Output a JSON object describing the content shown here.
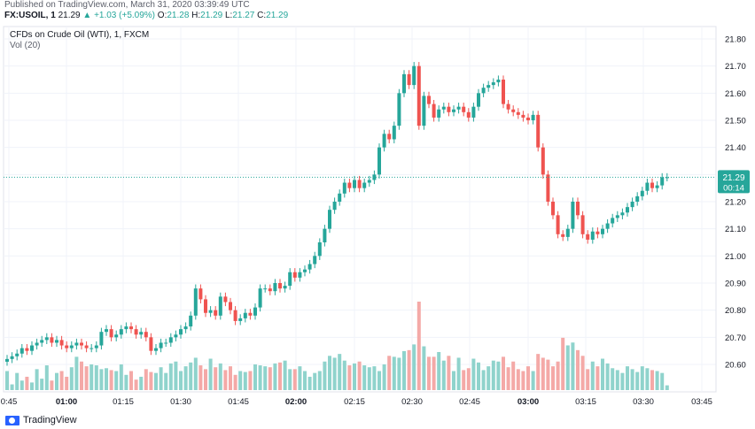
{
  "header": {
    "published": "Published on TradingView.com, March 31, 2020 03:39:49 UTC",
    "symbol": "FX:USOIL, 1",
    "last": "21.29",
    "change": "▲ +1.03 (+5.09%)",
    "o_label": "O:",
    "o_val": "21.28",
    "h_label": "H:",
    "h_val": "21.29",
    "l_label": "L:",
    "l_val": "21.27",
    "c_label": "C:",
    "c_val": "21.29"
  },
  "legend": {
    "title": "CFDs on Crude Oil (WTI), 1, FXCM",
    "vol": "Vol (20)"
  },
  "price_tag": {
    "price": "21.29",
    "countdown": "00:14"
  },
  "footer": {
    "brand": "TradingView"
  },
  "colors": {
    "up": "#26a69a",
    "down": "#ef5350",
    "vol_up": "#8fd3cc",
    "vol_down": "#f4a9a7",
    "grid": "#f0f3fa",
    "last_line": "#26a69a"
  },
  "chart_data": {
    "type": "candlestick",
    "title": "CFDs on Crude Oil (WTI), 1, FXCM",
    "x_tick_labels": [
      "0:45",
      "01:00",
      "01:15",
      "01:30",
      "01:45",
      "02:00",
      "02:15",
      "02:30",
      "02:45",
      "03:00",
      "03:15",
      "03:30",
      "03:45"
    ],
    "y_tick_labels": [
      "20.60",
      "20.70",
      "20.80",
      "20.90",
      "21.00",
      "21.10",
      "21.20",
      "21.30",
      "21.40",
      "21.50",
      "21.60",
      "21.70",
      "21.80"
    ],
    "ylim": [
      20.52,
      21.84
    ],
    "last_price": 21.29,
    "close": [
      20.62,
      20.63,
      20.64,
      20.66,
      20.65,
      20.67,
      20.68,
      20.69,
      20.7,
      20.68,
      20.69,
      20.67,
      20.66,
      20.67,
      20.68,
      20.67,
      20.66,
      20.66,
      20.67,
      20.72,
      20.73,
      20.7,
      20.71,
      20.73,
      20.74,
      20.73,
      20.71,
      20.72,
      20.7,
      20.65,
      20.66,
      20.68,
      20.68,
      20.7,
      20.71,
      20.73,
      20.74,
      20.78,
      20.88,
      20.84,
      20.79,
      20.8,
      20.78,
      20.85,
      20.83,
      20.8,
      20.76,
      20.77,
      20.79,
      20.78,
      20.81,
      20.88,
      20.88,
      20.87,
      20.9,
      20.88,
      20.89,
      20.94,
      20.92,
      20.94,
      20.95,
      20.97,
      21.0,
      21.05,
      21.1,
      21.17,
      21.2,
      21.23,
      21.27,
      21.25,
      21.28,
      21.25,
      21.27,
      21.28,
      21.3,
      21.4,
      21.45,
      21.43,
      21.48,
      21.6,
      21.67,
      21.63,
      21.7,
      21.48,
      21.59,
      21.56,
      21.51,
      21.54,
      21.55,
      21.53,
      21.54,
      21.55,
      21.53,
      21.51,
      21.55,
      21.6,
      21.62,
      21.63,
      21.64,
      21.65,
      21.56,
      21.54,
      21.53,
      21.52,
      21.51,
      21.5,
      21.52,
      21.4,
      21.3,
      21.2,
      21.15,
      21.08,
      21.07,
      21.1,
      21.2,
      21.15,
      21.08,
      21.06,
      21.09,
      21.08,
      21.1,
      21.12,
      21.14,
      21.15,
      21.16,
      21.18,
      21.2,
      21.22,
      21.24,
      21.27,
      21.25,
      21.26,
      21.29,
      21.29
    ],
    "volume": [
      20,
      6,
      18,
      10,
      14,
      8,
      22,
      12,
      26,
      10,
      18,
      20,
      14,
      24,
      35,
      30,
      25,
      27,
      26,
      22,
      23,
      21,
      20,
      27,
      16,
      20,
      11,
      14,
      22,
      19,
      18,
      24,
      18,
      28,
      30,
      20,
      25,
      29,
      34,
      26,
      22,
      33,
      24,
      28,
      21,
      25,
      16,
      20,
      19,
      20,
      27,
      26,
      25,
      24,
      28,
      29,
      31,
      22,
      22,
      25,
      20,
      14,
      18,
      20,
      30,
      36,
      34,
      38,
      31,
      26,
      28,
      30,
      26,
      24,
      25,
      20,
      27,
      36,
      35,
      34,
      41,
      42,
      48,
      93,
      46,
      35,
      35,
      40,
      31,
      36,
      20,
      34,
      21,
      23,
      33,
      29,
      21,
      25,
      31,
      30,
      35,
      24,
      30,
      22,
      20,
      25,
      20,
      38,
      34,
      32,
      25,
      30,
      55,
      47,
      50,
      42,
      36,
      22,
      30,
      25,
      33,
      28,
      23,
      21,
      18,
      25,
      22,
      19,
      25,
      23,
      21,
      20,
      18,
      5
    ]
  }
}
